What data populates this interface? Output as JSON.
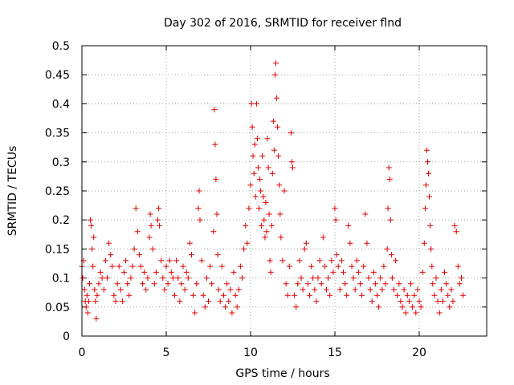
{
  "chart_data": {
    "type": "scatter",
    "title": "Day 302 of 2016, SRMTID for receiver flnd",
    "xlabel": "GPS time / hours",
    "ylabel": "SRMTID / TECUs",
    "xlim": [
      0,
      24
    ],
    "ylim": [
      0,
      0.5
    ],
    "x_ticks": [
      0,
      5,
      10,
      15,
      20
    ],
    "y_ticks": [
      0,
      0.05,
      0.1,
      0.15,
      0.2,
      0.25,
      0.3,
      0.35,
      0.4,
      0.45,
      0.5
    ],
    "x_tick_labels": [
      "0",
      "5",
      "10",
      "15",
      "20"
    ],
    "y_tick_labels": [
      "0",
      "0.05",
      "0.1",
      "0.15",
      "0.2",
      "0.25",
      "0.3",
      "0.35",
      "0.4",
      "0.45",
      "0.5"
    ],
    "grid": true,
    "marker": "+",
    "color": "#e00000",
    "series": [
      {
        "points": [
          [
            0.0,
            0.12
          ],
          [
            0.05,
            0.1
          ],
          [
            0.1,
            0.13
          ],
          [
            0.15,
            0.08
          ],
          [
            0.2,
            0.06
          ],
          [
            0.25,
            0.05
          ],
          [
            0.3,
            0.07
          ],
          [
            0.35,
            0.04
          ],
          [
            0.4,
            0.06
          ],
          [
            0.45,
            0.09
          ],
          [
            0.5,
            0.2
          ],
          [
            0.55,
            0.19
          ],
          [
            0.6,
            0.15
          ],
          [
            0.65,
            0.12
          ],
          [
            0.7,
            0.17
          ],
          [
            0.75,
            0.08
          ],
          [
            0.8,
            0.06
          ],
          [
            0.85,
            0.03
          ],
          [
            0.9,
            0.07
          ],
          [
            1.0,
            0.09
          ],
          [
            1.1,
            0.11
          ],
          [
            1.2,
            0.1
          ],
          [
            1.3,
            0.08
          ],
          [
            1.4,
            0.13
          ],
          [
            1.5,
            0.1
          ],
          [
            1.6,
            0.16
          ],
          [
            1.7,
            0.14
          ],
          [
            1.8,
            0.12
          ],
          [
            1.9,
            0.07
          ],
          [
            2.0,
            0.06
          ],
          [
            2.1,
            0.09
          ],
          [
            2.2,
            0.12
          ],
          [
            2.3,
            0.08
          ],
          [
            2.4,
            0.06
          ],
          [
            2.5,
            0.11
          ],
          [
            2.6,
            0.13
          ],
          [
            2.7,
            0.09
          ],
          [
            2.8,
            0.07
          ],
          [
            2.9,
            0.1
          ],
          [
            3.0,
            0.12
          ],
          [
            3.1,
            0.15
          ],
          [
            3.2,
            0.22
          ],
          [
            3.3,
            0.18
          ],
          [
            3.4,
            0.14
          ],
          [
            3.5,
            0.12
          ],
          [
            3.6,
            0.09
          ],
          [
            3.7,
            0.11
          ],
          [
            3.8,
            0.08
          ],
          [
            3.9,
            0.1
          ],
          [
            4.0,
            0.17
          ],
          [
            4.05,
            0.21
          ],
          [
            4.1,
            0.19
          ],
          [
            4.2,
            0.15
          ],
          [
            4.3,
            0.09
          ],
          [
            4.4,
            0.11
          ],
          [
            4.5,
            0.2
          ],
          [
            4.55,
            0.22
          ],
          [
            4.6,
            0.19
          ],
          [
            4.7,
            0.13
          ],
          [
            4.8,
            0.1
          ],
          [
            4.9,
            0.08
          ],
          [
            5.0,
            0.12
          ],
          [
            5.1,
            0.09
          ],
          [
            5.2,
            0.13
          ],
          [
            5.3,
            0.11
          ],
          [
            5.4,
            0.1
          ],
          [
            5.5,
            0.07
          ],
          [
            5.6,
            0.13
          ],
          [
            5.7,
            0.1
          ],
          [
            5.8,
            0.06
          ],
          [
            5.9,
            0.09
          ],
          [
            6.0,
            0.12
          ],
          [
            6.1,
            0.08
          ],
          [
            6.2,
            0.11
          ],
          [
            6.3,
            0.1
          ],
          [
            6.4,
            0.16
          ],
          [
            6.5,
            0.14
          ],
          [
            6.6,
            0.07
          ],
          [
            6.7,
            0.04
          ],
          [
            6.8,
            0.09
          ],
          [
            6.9,
            0.22
          ],
          [
            6.95,
            0.25
          ],
          [
            7.0,
            0.2
          ],
          [
            7.1,
            0.13
          ],
          [
            7.2,
            0.07
          ],
          [
            7.3,
            0.05
          ],
          [
            7.4,
            0.1
          ],
          [
            7.5,
            0.06
          ],
          [
            7.6,
            0.12
          ],
          [
            7.7,
            0.09
          ],
          [
            7.8,
            0.18
          ],
          [
            7.85,
            0.39
          ],
          [
            7.9,
            0.33
          ],
          [
            7.95,
            0.27
          ],
          [
            8.0,
            0.21
          ],
          [
            8.05,
            0.14
          ],
          [
            8.1,
            0.08
          ],
          [
            8.2,
            0.06
          ],
          [
            8.3,
            0.12
          ],
          [
            8.4,
            0.07
          ],
          [
            8.5,
            0.05
          ],
          [
            8.6,
            0.09
          ],
          [
            8.7,
            0.06
          ],
          [
            8.8,
            0.08
          ],
          [
            8.9,
            0.04
          ],
          [
            9.0,
            0.11
          ],
          [
            9.1,
            0.07
          ],
          [
            9.2,
            0.05
          ],
          [
            9.3,
            0.08
          ],
          [
            9.4,
            0.12
          ],
          [
            9.5,
            0.1
          ],
          [
            9.6,
            0.15
          ],
          [
            9.7,
            0.19
          ],
          [
            9.8,
            0.16
          ],
          [
            9.9,
            0.22
          ],
          [
            10.0,
            0.26
          ],
          [
            10.05,
            0.4
          ],
          [
            10.1,
            0.36
          ],
          [
            10.15,
            0.31
          ],
          [
            10.2,
            0.28
          ],
          [
            10.25,
            0.33
          ],
          [
            10.3,
            0.24
          ],
          [
            10.35,
            0.4
          ],
          [
            10.4,
            0.34
          ],
          [
            10.45,
            0.29
          ],
          [
            10.5,
            0.22
          ],
          [
            10.55,
            0.27
          ],
          [
            10.6,
            0.25
          ],
          [
            10.65,
            0.19
          ],
          [
            10.7,
            0.31
          ],
          [
            10.75,
            0.24
          ],
          [
            10.8,
            0.2
          ],
          [
            10.85,
            0.17
          ],
          [
            10.9,
            0.23
          ],
          [
            10.95,
            0.18
          ],
          [
            11.0,
            0.34
          ],
          [
            11.05,
            0.29
          ],
          [
            11.1,
            0.21
          ],
          [
            11.15,
            0.13
          ],
          [
            11.2,
            0.11
          ],
          [
            11.25,
            0.19
          ],
          [
            11.3,
            0.28
          ],
          [
            11.35,
            0.37
          ],
          [
            11.4,
            0.32
          ],
          [
            11.45,
            0.45
          ],
          [
            11.5,
            0.47
          ],
          [
            11.55,
            0.41
          ],
          [
            11.6,
            0.36
          ],
          [
            11.65,
            0.31
          ],
          [
            11.7,
            0.26
          ],
          [
            11.75,
            0.21
          ],
          [
            11.8,
            0.17
          ],
          [
            11.9,
            0.13
          ],
          [
            12.0,
            0.25
          ],
          [
            12.1,
            0.09
          ],
          [
            12.2,
            0.07
          ],
          [
            12.3,
            0.12
          ],
          [
            12.4,
            0.35
          ],
          [
            12.45,
            0.3
          ],
          [
            12.5,
            0.29
          ],
          [
            12.6,
            0.07
          ],
          [
            12.7,
            0.05
          ],
          [
            12.8,
            0.09
          ],
          [
            12.9,
            0.13
          ],
          [
            13.0,
            0.1
          ],
          [
            13.1,
            0.08
          ],
          [
            13.2,
            0.15
          ],
          [
            13.3,
            0.16
          ],
          [
            13.4,
            0.09
          ],
          [
            13.5,
            0.07
          ],
          [
            13.6,
            0.12
          ],
          [
            13.7,
            0.1
          ],
          [
            13.8,
            0.08
          ],
          [
            13.9,
            0.06
          ],
          [
            14.0,
            0.1
          ],
          [
            14.1,
            0.13
          ],
          [
            14.2,
            0.09
          ],
          [
            14.3,
            0.17
          ],
          [
            14.4,
            0.12
          ],
          [
            14.5,
            0.08
          ],
          [
            14.6,
            0.1
          ],
          [
            14.7,
            0.07
          ],
          [
            14.8,
            0.13
          ],
          [
            14.9,
            0.11
          ],
          [
            15.0,
            0.22
          ],
          [
            15.05,
            0.2
          ],
          [
            15.1,
            0.14
          ],
          [
            15.2,
            0.12
          ],
          [
            15.3,
            0.08
          ],
          [
            15.4,
            0.13
          ],
          [
            15.5,
            0.11
          ],
          [
            15.6,
            0.09
          ],
          [
            15.7,
            0.07
          ],
          [
            15.8,
            0.19
          ],
          [
            15.9,
            0.16
          ],
          [
            16.0,
            0.12
          ],
          [
            16.1,
            0.1
          ],
          [
            16.2,
            0.08
          ],
          [
            16.3,
            0.13
          ],
          [
            16.4,
            0.11
          ],
          [
            16.5,
            0.09
          ],
          [
            16.6,
            0.07
          ],
          [
            16.7,
            0.12
          ],
          [
            16.8,
            0.21
          ],
          [
            16.9,
            0.16
          ],
          [
            17.0,
            0.1
          ],
          [
            17.1,
            0.08
          ],
          [
            17.2,
            0.06
          ],
          [
            17.3,
            0.11
          ],
          [
            17.4,
            0.09
          ],
          [
            17.5,
            0.07
          ],
          [
            17.6,
            0.05
          ],
          [
            17.7,
            0.1
          ],
          [
            17.8,
            0.08
          ],
          [
            17.9,
            0.12
          ],
          [
            18.0,
            0.09
          ],
          [
            18.1,
            0.15
          ],
          [
            18.15,
            0.22
          ],
          [
            18.2,
            0.29
          ],
          [
            18.25,
            0.27
          ],
          [
            18.3,
            0.2
          ],
          [
            18.35,
            0.14
          ],
          [
            18.4,
            0.1
          ],
          [
            18.5,
            0.08
          ],
          [
            18.6,
            0.13
          ],
          [
            18.7,
            0.07
          ],
          [
            18.8,
            0.09
          ],
          [
            18.9,
            0.06
          ],
          [
            19.0,
            0.05
          ],
          [
            19.1,
            0.08
          ],
          [
            19.2,
            0.04
          ],
          [
            19.3,
            0.07
          ],
          [
            19.4,
            0.06
          ],
          [
            19.5,
            0.09
          ],
          [
            19.6,
            0.05
          ],
          [
            19.7,
            0.07
          ],
          [
            19.8,
            0.04
          ],
          [
            19.9,
            0.08
          ],
          [
            20.0,
            0.06
          ],
          [
            20.1,
            0.05
          ],
          [
            20.2,
            0.11
          ],
          [
            20.3,
            0.16
          ],
          [
            20.35,
            0.22
          ],
          [
            20.4,
            0.26
          ],
          [
            20.45,
            0.32
          ],
          [
            20.5,
            0.3
          ],
          [
            20.55,
            0.28
          ],
          [
            20.6,
            0.24
          ],
          [
            20.65,
            0.19
          ],
          [
            20.7,
            0.15
          ],
          [
            20.75,
            0.12
          ],
          [
            20.8,
            0.09
          ],
          [
            20.9,
            0.07
          ],
          [
            21.0,
            0.1
          ],
          [
            21.1,
            0.06
          ],
          [
            21.2,
            0.04
          ],
          [
            21.3,
            0.08
          ],
          [
            21.4,
            0.06
          ],
          [
            21.5,
            0.11
          ],
          [
            21.6,
            0.09
          ],
          [
            21.7,
            0.07
          ],
          [
            21.8,
            0.05
          ],
          [
            21.9,
            0.08
          ],
          [
            22.0,
            0.06
          ],
          [
            22.1,
            0.19
          ],
          [
            22.2,
            0.18
          ],
          [
            22.3,
            0.12
          ],
          [
            22.4,
            0.09
          ],
          [
            22.5,
            0.1
          ],
          [
            22.6,
            0.07
          ]
        ]
      }
    ]
  }
}
